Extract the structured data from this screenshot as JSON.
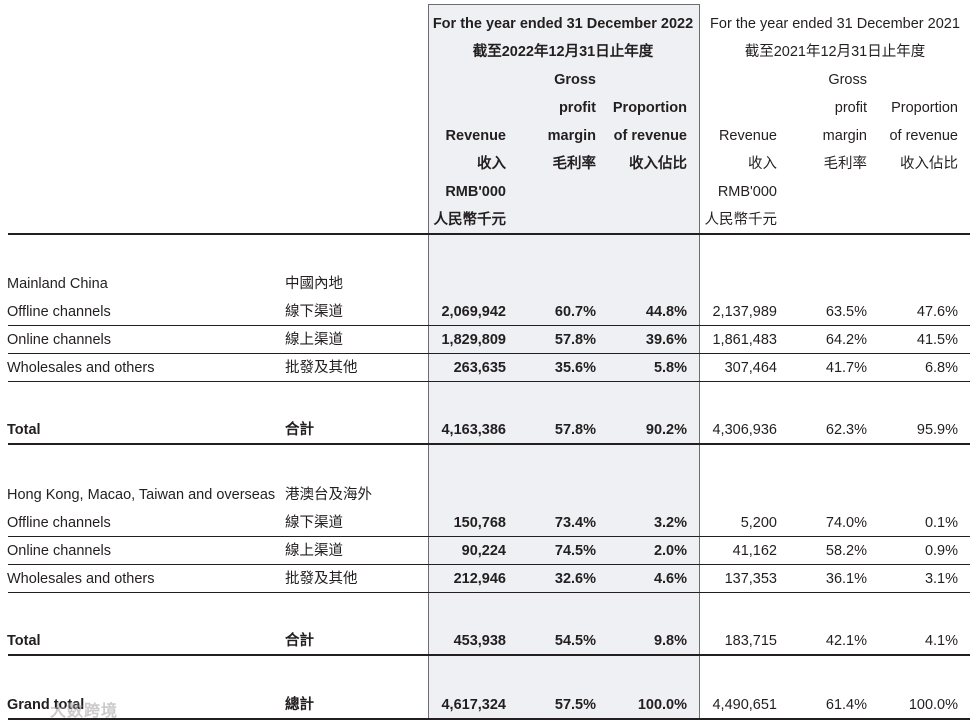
{
  "header": {
    "y2022_en": "For the year ended 31 December 2022",
    "y2022_zh": "截至2022年12月31日止年度",
    "y2021_en": "For the year ended 31 December 2021",
    "y2021_zh": "截至2021年12月31日止年度",
    "gross": "Gross",
    "profit": "profit",
    "margin": "margin",
    "margin_zh": "毛利率",
    "proportion": "Proportion",
    "of_revenue": "of revenue",
    "proportion_zh": "收入佔比",
    "revenue": "Revenue",
    "revenue_zh": "收入",
    "unit_en": "RMB'000",
    "unit_zh": "人民幣千元"
  },
  "sections": [
    {
      "title_en": "Mainland China",
      "title_zh": "中國內地",
      "rows": [
        {
          "en": "Offline channels",
          "zh": "線下渠道",
          "r22": "2,069,942",
          "g22": "60.7%",
          "p22": "44.8%",
          "r21": "2,137,989",
          "g21": "63.5%",
          "p21": "47.6%"
        },
        {
          "en": "Online channels",
          "zh": "線上渠道",
          "r22": "1,829,809",
          "g22": "57.8%",
          "p22": "39.6%",
          "r21": "1,861,483",
          "g21": "64.2%",
          "p21": "41.5%"
        },
        {
          "en": "Wholesales and others",
          "zh": "批發及其他",
          "r22": "263,635",
          "g22": "35.6%",
          "p22": "5.8%",
          "r21": "307,464",
          "g21": "41.7%",
          "p21": "6.8%"
        }
      ],
      "total": {
        "en": "Total",
        "zh": "合計",
        "r22": "4,163,386",
        "g22": "57.8%",
        "p22": "90.2%",
        "r21": "4,306,936",
        "g21": "62.3%",
        "p21": "95.9%"
      }
    },
    {
      "title_en": "Hong Kong, Macao, Taiwan and overseas",
      "title_zh": "港澳台及海外",
      "rows": [
        {
          "en": "Offline channels",
          "zh": "線下渠道",
          "r22": "150,768",
          "g22": "73.4%",
          "p22": "3.2%",
          "r21": "5,200",
          "g21": "74.0%",
          "p21": "0.1%"
        },
        {
          "en": "Online channels",
          "zh": "線上渠道",
          "r22": "90,224",
          "g22": "74.5%",
          "p22": "2.0%",
          "r21": "41,162",
          "g21": "58.2%",
          "p21": "0.9%"
        },
        {
          "en": "Wholesales and others",
          "zh": "批發及其他",
          "r22": "212,946",
          "g22": "32.6%",
          "p22": "4.6%",
          "r21": "137,353",
          "g21": "36.1%",
          "p21": "3.1%"
        }
      ],
      "total": {
        "en": "Total",
        "zh": "合計",
        "r22": "453,938",
        "g22": "54.5%",
        "p22": "9.8%",
        "r21": "183,715",
        "g21": "42.1%",
        "p21": "4.1%"
      }
    }
  ],
  "grand_total": {
    "en": "Grand total",
    "zh": "總計",
    "r22": "4,617,324",
    "g22": "57.5%",
    "p22": "100.0%",
    "r21": "4,490,651",
    "g21": "61.4%",
    "p21": "100.0%"
  },
  "watermark": "大数跨境"
}
